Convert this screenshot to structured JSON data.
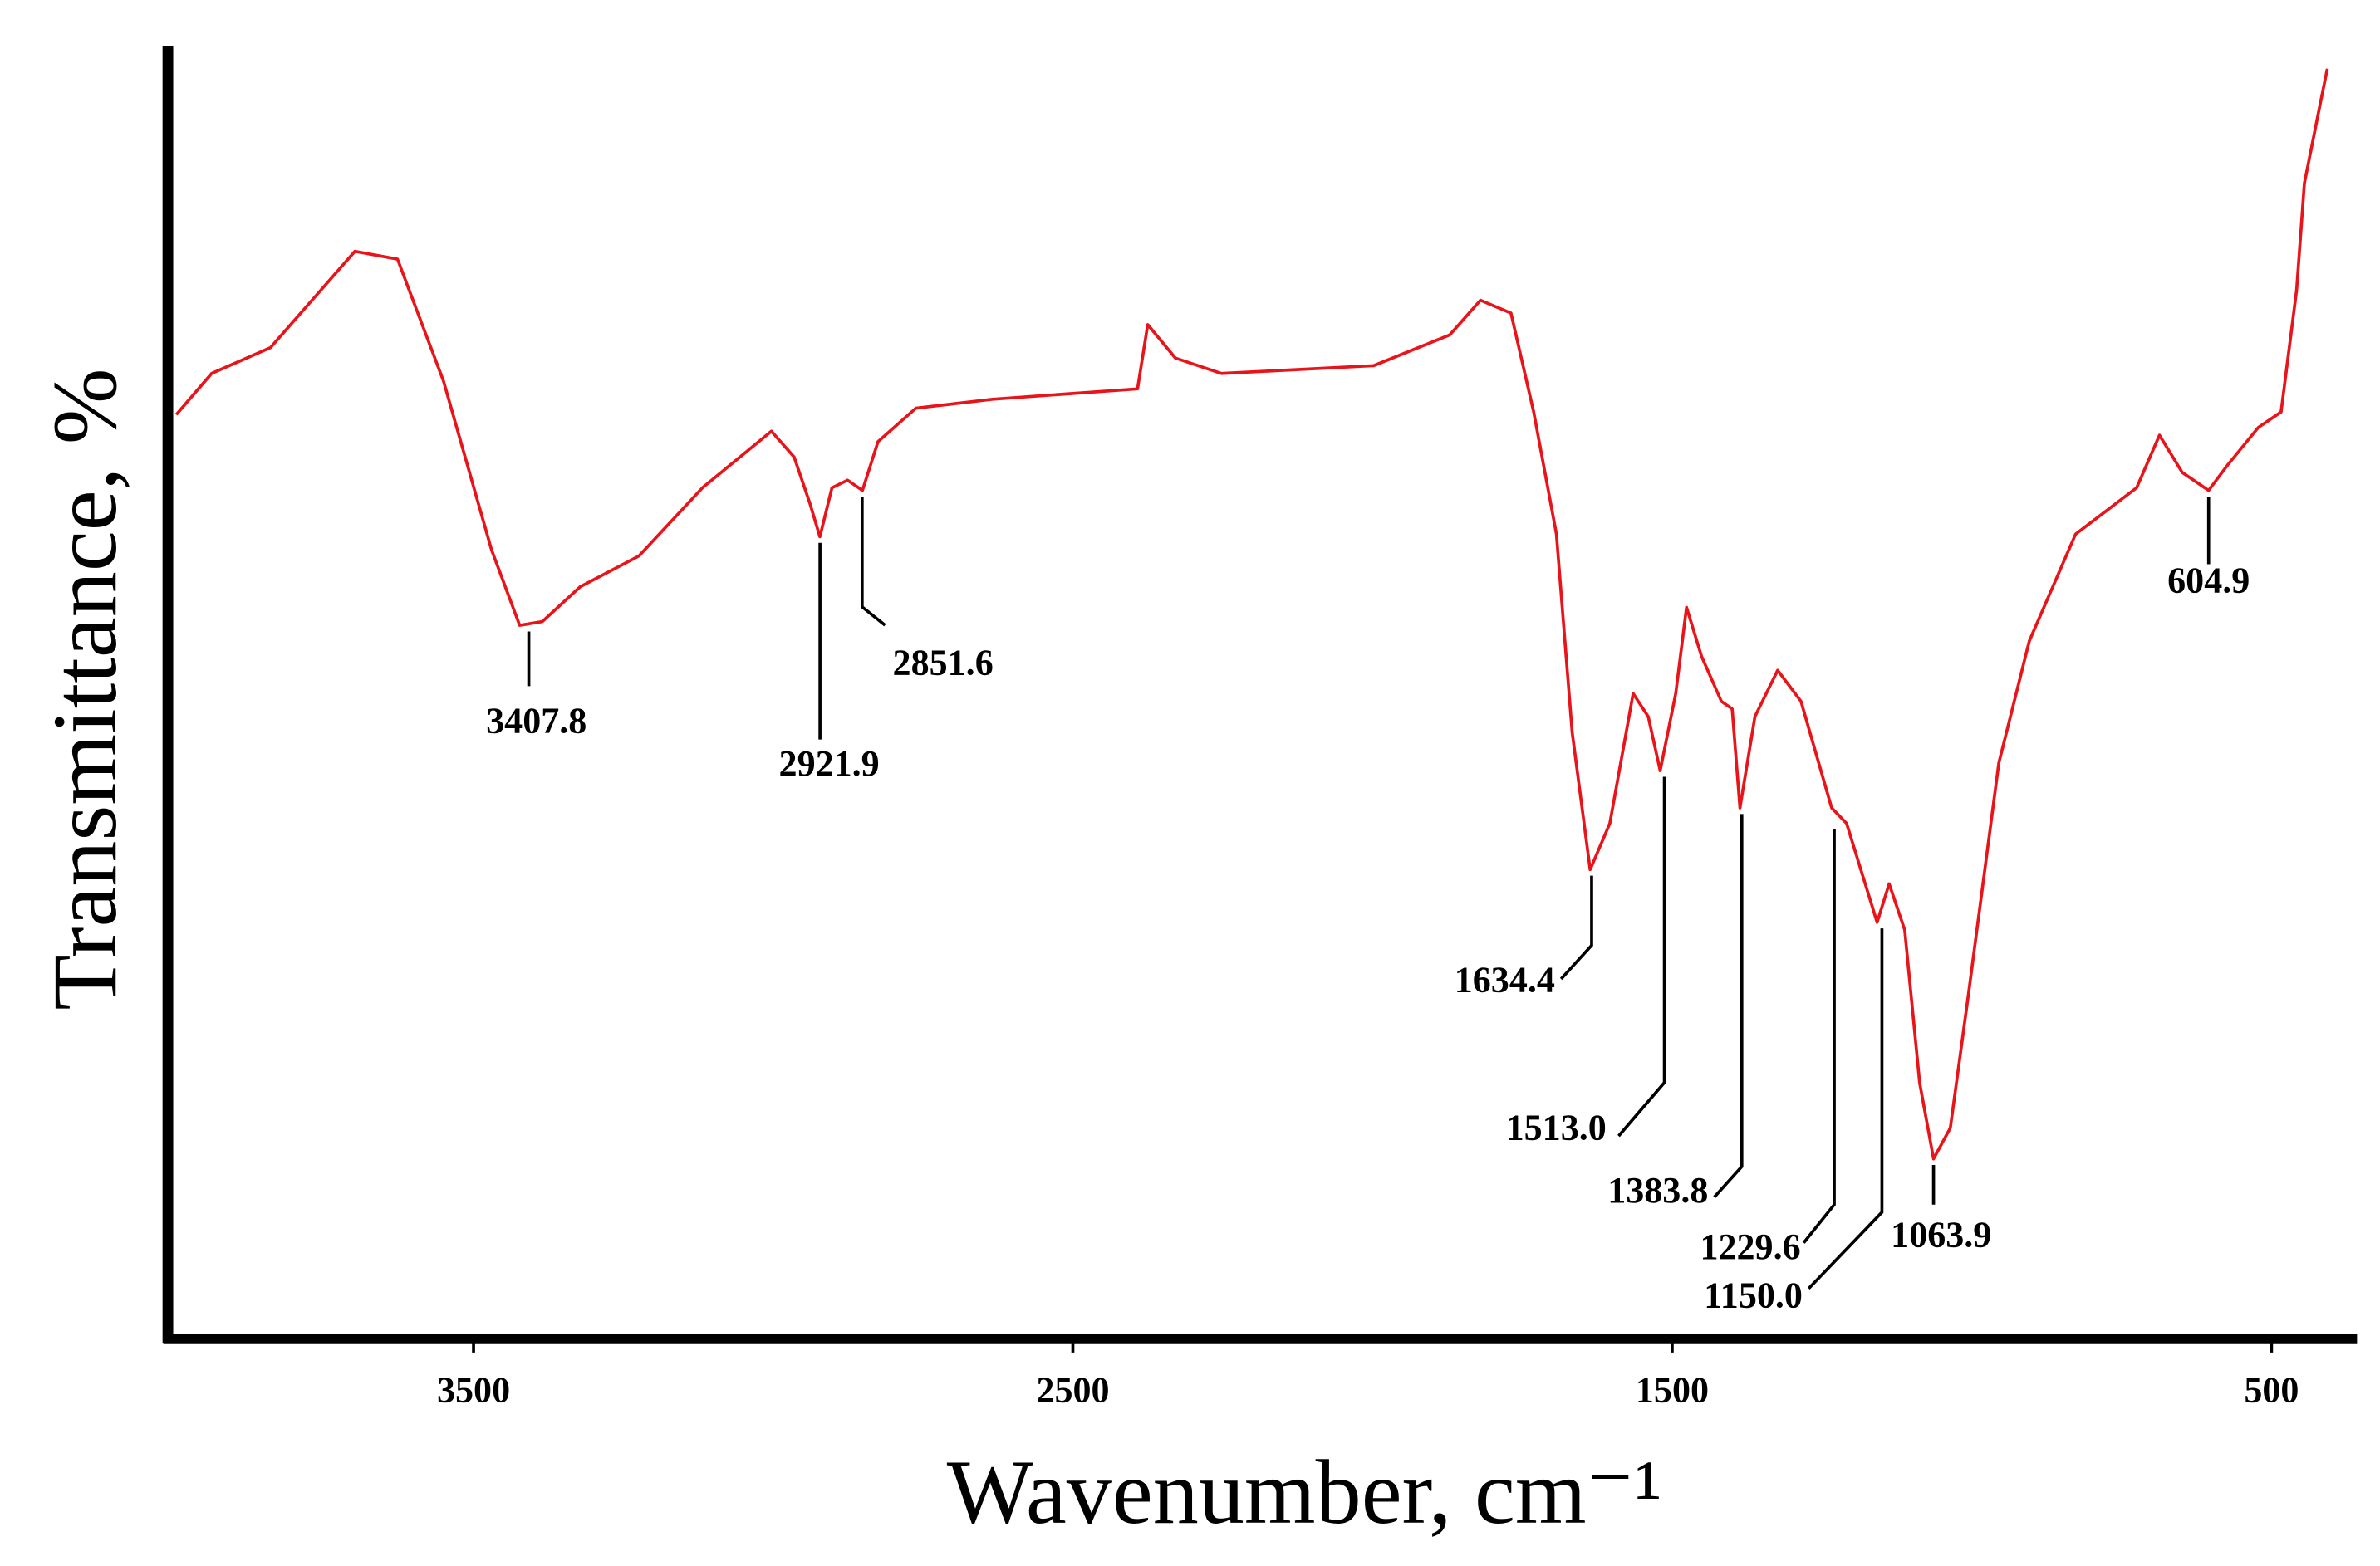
{
  "chart_data": {
    "type": "line",
    "x_label": "Wavenumber, cm⁻¹",
    "y_label": "Transmittance, %",
    "xlim": [
      4010,
      370
    ],
    "ylim": [
      0,
      100
    ],
    "xticks": [
      3500,
      2500,
      1500,
      500
    ],
    "x_reversed": true,
    "grid": false,
    "series": [
      {
        "name": "Transmittance",
        "color": "#e8141a",
        "x": [
          3996,
          3937,
          3839,
          3698,
          3627,
          3550,
          3470,
          3423,
          3385,
          3322,
          3224,
          3118,
          3003,
          2965,
          2939,
          2922,
          2902,
          2876,
          2851,
          2825,
          2762,
          2634,
          2392,
          2375,
          2329,
          2252,
          1998,
          1871,
          1820,
          1769,
          1731,
          1693,
          1667,
          1637,
          1604,
          1565,
          1540,
          1520,
          1494,
          1476,
          1451,
          1418,
          1400,
          1387,
          1362,
          1324,
          1285,
          1234,
          1209,
          1178,
          1158,
          1138,
          1112,
          1087,
          1064,
          1036,
          1005,
          955,
          904,
          827,
          725,
          687,
          649,
          605,
          573,
          522,
          484,
          458,
          445,
          420,
          407
        ],
        "values": [
          71.9,
          75.1,
          77.1,
          84.6,
          84.0,
          74.5,
          61.4,
          55.5,
          55.8,
          58.5,
          60.9,
          66.2,
          70.6,
          68.6,
          65.0,
          62.4,
          66.2,
          66.8,
          66.0,
          69.8,
          72.4,
          73.1,
          73.9,
          78.9,
          76.3,
          75.1,
          75.7,
          78.1,
          80.8,
          79.8,
          72.1,
          62.6,
          47.2,
          36.5,
          40.1,
          50.2,
          48.4,
          44.2,
          50.2,
          56.9,
          53.1,
          49.6,
          49.0,
          41.3,
          48.4,
          52.0,
          49.6,
          41.3,
          40.1,
          35.4,
          32.4,
          35.4,
          31.8,
          19.9,
          14.0,
          16.4,
          27.0,
          44.8,
          54.3,
          62.6,
          66.2,
          70.3,
          67.4,
          66.0,
          68.0,
          70.9,
          72.1,
          81.6,
          89.9,
          95.8,
          98.8
        ]
      }
    ],
    "annotations": [
      {
        "x": 3407.8,
        "y": 55.5,
        "label": "3407.8"
      },
      {
        "x": 2921.9,
        "y": 62.4,
        "label": "2921.9"
      },
      {
        "x": 2851.6,
        "y": 66.0,
        "label": "2851.6"
      },
      {
        "x": 1634.4,
        "y": 36.5,
        "label": "1634.4"
      },
      {
        "x": 1513.0,
        "y": 44.2,
        "label": "1513.0"
      },
      {
        "x": 1383.8,
        "y": 41.3,
        "label": "1383.8"
      },
      {
        "x": 1229.6,
        "y": 40.1,
        "label": "1229.6"
      },
      {
        "x": 1150.0,
        "y": 32.4,
        "label": "1150.0"
      },
      {
        "x": 1063.9,
        "y": 14.0,
        "label": "1063.9"
      },
      {
        "x": 604.9,
        "y": 66.0,
        "label": "604.9"
      }
    ]
  }
}
